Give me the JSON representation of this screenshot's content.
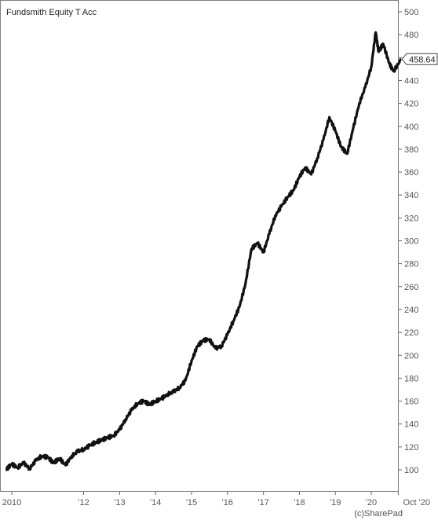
{
  "chart_data": {
    "type": "line",
    "title": "Fundsmith Equity T Acc",
    "xlabel": "",
    "ylabel": "",
    "ylim": [
      90,
      505
    ],
    "xlim": [
      "2010-01-01",
      "2020-10-31"
    ],
    "grid": false,
    "x_ticks": [
      {
        "date": "2010-01-01",
        "label": "2010"
      },
      {
        "date": "2012-01-01",
        "label": "'12"
      },
      {
        "date": "2013-01-01",
        "label": "'13"
      },
      {
        "date": "2014-01-01",
        "label": "'14"
      },
      {
        "date": "2015-01-01",
        "label": "'15"
      },
      {
        "date": "2016-01-01",
        "label": "'16"
      },
      {
        "date": "2017-01-01",
        "label": "'17"
      },
      {
        "date": "2018-01-01",
        "label": "'18"
      },
      {
        "date": "2019-01-01",
        "label": "'19"
      },
      {
        "date": "2020-01-01",
        "label": "'20"
      },
      {
        "date": "2020-10-01",
        "label": "Oct '20"
      }
    ],
    "y_ticks": [
      100,
      120,
      140,
      160,
      180,
      200,
      220,
      240,
      260,
      280,
      300,
      320,
      340,
      360,
      380,
      400,
      420,
      440,
      460,
      480,
      500
    ],
    "last_value_label": "458.64",
    "series": [
      {
        "color": "#111111",
        "points": [
          [
            "2009-11-01",
            100
          ],
          [
            "2010-01-01",
            105
          ],
          [
            "2010-03-01",
            102
          ],
          [
            "2010-05-01",
            106
          ],
          [
            "2010-07-01",
            101
          ],
          [
            "2010-09-01",
            108
          ],
          [
            "2010-11-01",
            112
          ],
          [
            "2011-01-01",
            111
          ],
          [
            "2011-03-01",
            106
          ],
          [
            "2011-05-01",
            110
          ],
          [
            "2011-07-01",
            104
          ],
          [
            "2011-09-01",
            112
          ],
          [
            "2011-11-01",
            116
          ],
          [
            "2012-01-01",
            118
          ],
          [
            "2012-03-01",
            121
          ],
          [
            "2012-05-01",
            124
          ],
          [
            "2012-07-01",
            126
          ],
          [
            "2012-09-01",
            128
          ],
          [
            "2012-11-01",
            130
          ],
          [
            "2013-01-01",
            135
          ],
          [
            "2013-03-01",
            144
          ],
          [
            "2013-05-01",
            152
          ],
          [
            "2013-07-01",
            158
          ],
          [
            "2013-09-01",
            160
          ],
          [
            "2013-11-01",
            157
          ],
          [
            "2014-01-01",
            160
          ],
          [
            "2014-03-01",
            162
          ],
          [
            "2014-05-01",
            166
          ],
          [
            "2014-07-01",
            168
          ],
          [
            "2014-09-01",
            172
          ],
          [
            "2014-11-01",
            178
          ],
          [
            "2015-01-01",
            195
          ],
          [
            "2015-03-01",
            208
          ],
          [
            "2015-05-01",
            213
          ],
          [
            "2015-07-01",
            214
          ],
          [
            "2015-09-01",
            206
          ],
          [
            "2015-11-01",
            208
          ],
          [
            "2016-01-01",
            218
          ],
          [
            "2016-03-01",
            230
          ],
          [
            "2016-05-01",
            242
          ],
          [
            "2016-07-01",
            262
          ],
          [
            "2016-09-01",
            293
          ],
          [
            "2016-11-01",
            298
          ],
          [
            "2017-01-01",
            290
          ],
          [
            "2017-03-01",
            306
          ],
          [
            "2017-05-01",
            322
          ],
          [
            "2017-07-01",
            330
          ],
          [
            "2017-09-01",
            338
          ],
          [
            "2017-11-01",
            344
          ],
          [
            "2018-01-01",
            356
          ],
          [
            "2018-03-01",
            364
          ],
          [
            "2018-05-01",
            358
          ],
          [
            "2018-07-01",
            372
          ],
          [
            "2018-09-01",
            388
          ],
          [
            "2018-11-01",
            408
          ],
          [
            "2019-01-01",
            396
          ],
          [
            "2019-03-01",
            382
          ],
          [
            "2019-05-01",
            376
          ],
          [
            "2019-07-01",
            398
          ],
          [
            "2019-09-01",
            420
          ],
          [
            "2019-11-01",
            434
          ],
          [
            "2020-01-01",
            452
          ],
          [
            "2020-02-15",
            482
          ],
          [
            "2020-03-15",
            465
          ],
          [
            "2020-05-01",
            472
          ],
          [
            "2020-07-01",
            455
          ],
          [
            "2020-08-15",
            448
          ],
          [
            "2020-10-31",
            458.64
          ]
        ]
      }
    ]
  },
  "watermark": "(c)SharePad"
}
